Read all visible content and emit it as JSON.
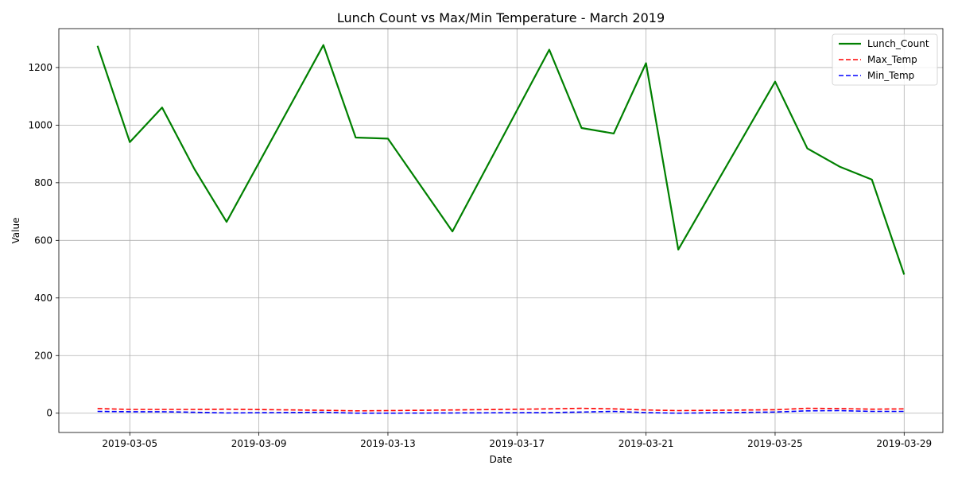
{
  "chart_data": {
    "type": "line",
    "title": "Lunch Count vs Max/Min Temperature - March 2019",
    "xlabel": "Date",
    "ylabel": "Value",
    "x": [
      "2019-03-04",
      "2019-03-05",
      "2019-03-06",
      "2019-03-07",
      "2019-03-08",
      "2019-03-11",
      "2019-03-12",
      "2019-03-13",
      "2019-03-15",
      "2019-03-18",
      "2019-03-19",
      "2019-03-20",
      "2019-03-21",
      "2019-03-22",
      "2019-03-25",
      "2019-03-26",
      "2019-03-27",
      "2019-03-28",
      "2019-03-29"
    ],
    "series": [
      {
        "name": "Lunch_Count",
        "color": "#008000",
        "dash": "solid",
        "values": [
          1275,
          941,
          1061,
          848,
          664,
          1278,
          957,
          953,
          631,
          1262,
          990,
          971,
          1215,
          568,
          1151,
          919,
          856,
          811,
          481
        ]
      },
      {
        "name": "Max_Temp",
        "color": "#ff0000",
        "dash": "dashed",
        "values": [
          16,
          13,
          13,
          13,
          14,
          10,
          8,
          9,
          11,
          15,
          17,
          15,
          11,
          9,
          12,
          17,
          16,
          14,
          15
        ]
      },
      {
        "name": "Min_Temp",
        "color": "#0000ff",
        "dash": "dashed",
        "values": [
          6,
          5,
          5,
          3,
          1,
          3,
          0,
          0,
          1,
          2,
          4,
          6,
          2,
          0,
          4,
          8,
          9,
          6,
          6
        ]
      }
    ],
    "xlim": [
      "2019-03-02 19:12",
      "2019-03-30 04:48"
    ],
    "ylim": [
      -67,
      1335
    ],
    "xticks": [
      "2019-03-05",
      "2019-03-09",
      "2019-03-13",
      "2019-03-17",
      "2019-03-21",
      "2019-03-25",
      "2019-03-29"
    ],
    "yticks": [
      0,
      200,
      400,
      600,
      800,
      1000,
      1200
    ],
    "grid": true,
    "legend_position": "top-right"
  }
}
